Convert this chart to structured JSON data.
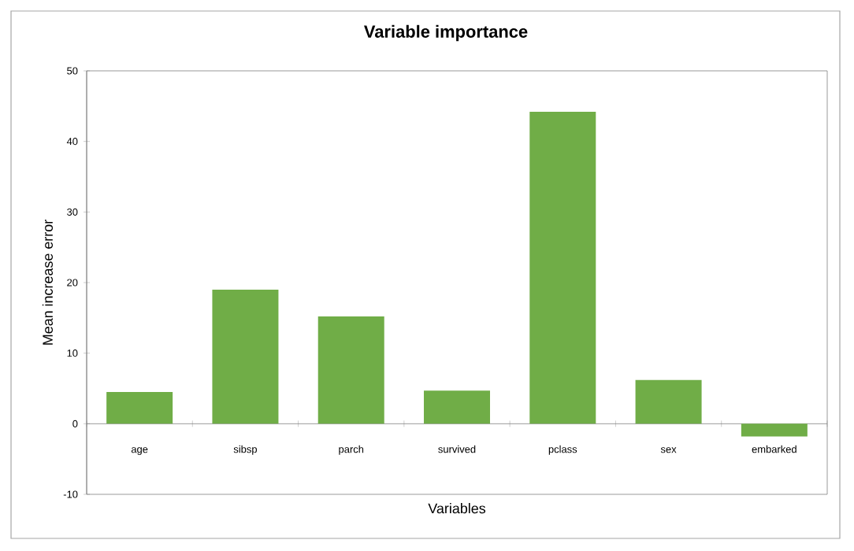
{
  "chart_data": {
    "type": "bar",
    "title": "Variable importance",
    "xlabel": "Variables",
    "ylabel": "Mean increase error",
    "categories": [
      "age",
      "sibsp",
      "parch",
      "survived",
      "pclass",
      "sex",
      "embarked"
    ],
    "values": [
      4.5,
      19.0,
      15.2,
      4.7,
      44.2,
      6.2,
      -1.8
    ],
    "color": "#70ad47",
    "ylim": [
      -10,
      50
    ],
    "yticks": [
      -10,
      0,
      10,
      20,
      30,
      40,
      50
    ]
  }
}
